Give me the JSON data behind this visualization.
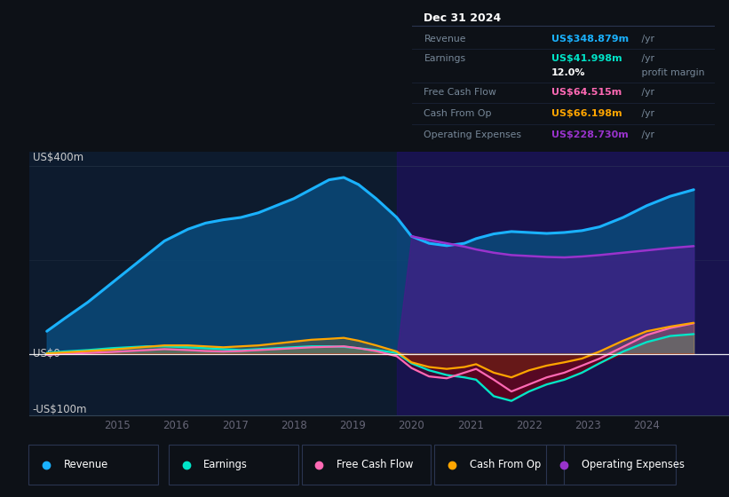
{
  "bg_color": "#0d1117",
  "plot_bg_color": "#0d1b2e",
  "ylim": [
    -130,
    430
  ],
  "xlim": [
    2013.5,
    2025.4
  ],
  "highlight_start": 2019.75,
  "highlight_end": 2025.4,
  "series_colors": {
    "revenue": "#1ab2ff",
    "earnings": "#00e5c8",
    "fcf": "#ff69b4",
    "cashfromop": "#ffa500",
    "opex": "#9933cc"
  },
  "legend_labels": [
    "Revenue",
    "Earnings",
    "Free Cash Flow",
    "Cash From Op",
    "Operating Expenses"
  ],
  "xticks": [
    2015,
    2016,
    2017,
    2018,
    2019,
    2020,
    2021,
    2022,
    2023,
    2024
  ],
  "x_years": [
    2013.8,
    2014.1,
    2014.5,
    2014.9,
    2015.2,
    2015.5,
    2015.8,
    2016.2,
    2016.5,
    2016.8,
    2017.1,
    2017.4,
    2017.7,
    2018.0,
    2018.3,
    2018.6,
    2018.85,
    2019.1,
    2019.4,
    2019.75,
    2020.0,
    2020.3,
    2020.6,
    2020.9,
    2021.1,
    2021.4,
    2021.7,
    2022.0,
    2022.3,
    2022.6,
    2022.9,
    2023.2,
    2023.6,
    2024.0,
    2024.4,
    2024.8
  ],
  "revenue": [
    48,
    75,
    110,
    150,
    180,
    210,
    240,
    265,
    278,
    285,
    290,
    300,
    315,
    330,
    350,
    370,
    375,
    360,
    330,
    290,
    250,
    235,
    230,
    235,
    245,
    255,
    260,
    258,
    256,
    258,
    262,
    270,
    290,
    315,
    335,
    349
  ],
  "earnings": [
    2,
    5,
    8,
    12,
    14,
    16,
    16,
    14,
    12,
    10,
    8,
    10,
    12,
    14,
    16,
    16,
    15,
    12,
    8,
    2,
    -20,
    -35,
    -45,
    -50,
    -55,
    -90,
    -100,
    -80,
    -65,
    -55,
    -40,
    -20,
    5,
    25,
    38,
    42
  ],
  "fcf": [
    -2,
    0,
    2,
    4,
    6,
    8,
    10,
    8,
    6,
    5,
    6,
    8,
    10,
    12,
    14,
    15,
    16,
    12,
    6,
    -5,
    -30,
    -48,
    -52,
    -40,
    -32,
    -55,
    -80,
    -65,
    -50,
    -40,
    -25,
    -10,
    15,
    40,
    55,
    65
  ],
  "cashfromop": [
    1,
    3,
    6,
    9,
    12,
    15,
    18,
    18,
    16,
    14,
    16,
    18,
    22,
    26,
    30,
    32,
    34,
    28,
    18,
    5,
    -18,
    -28,
    -32,
    -28,
    -22,
    -40,
    -50,
    -35,
    -25,
    -18,
    -10,
    5,
    28,
    48,
    58,
    66
  ],
  "opex": [
    0,
    0,
    0,
    0,
    0,
    0,
    0,
    0,
    0,
    0,
    0,
    0,
    0,
    0,
    0,
    0,
    0,
    0,
    0,
    0,
    250,
    242,
    235,
    228,
    222,
    215,
    210,
    208,
    206,
    205,
    207,
    210,
    215,
    220,
    225,
    229
  ],
  "info_rows": [
    {
      "label": "Revenue",
      "value": "US$348.879m",
      "unit": " /yr",
      "color": "#1ab2ff"
    },
    {
      "label": "Earnings",
      "value": "US$41.998m",
      "unit": " /yr",
      "color": "#00e5c8"
    },
    {
      "label": "",
      "value": "12.0%",
      "unit": " profit margin",
      "color": "#ffffff"
    },
    {
      "label": "Free Cash Flow",
      "value": "US$64.515m",
      "unit": " /yr",
      "color": "#ff69b4"
    },
    {
      "label": "Cash From Op",
      "value": "US$66.198m",
      "unit": " /yr",
      "color": "#ffa500"
    },
    {
      "label": "Operating Expenses",
      "value": "US$228.730m",
      "unit": " /yr",
      "color": "#9933cc"
    }
  ]
}
